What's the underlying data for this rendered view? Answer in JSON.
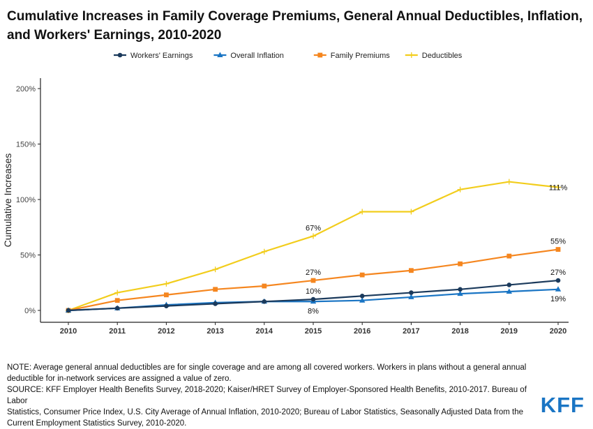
{
  "title_line1": "Cumulative Increases in Family Coverage Premiums, General Annual Deductibles, Inflation,",
  "title_line2": "and Workers' Earnings, 2010-2020",
  "note_line1": "NOTE: Average general annual deductibles are for single coverage and are among all covered workers. Workers in plans without a general annual",
  "note_line2": "deductible for in-network services are assigned a value of zero.",
  "note_line3": "SOURCE: KFF Employer Health Benefits Survey, 2018-2020; Kaiser/HRET Survey of Employer-Sponsored Health Benefits, 2010-2017. Bureau of Labor",
  "note_line4": "Statistics, Consumer Price Index, U.S. City Average of Annual Inflation, 2010-2020; Bureau of Labor Statistics, Seasonally Adjusted Data from the",
  "note_line5": "Current Employment Statistics Survey, 2010-2020.",
  "logo": "KFF",
  "chart_data": {
    "type": "line",
    "title": "Cumulative Increases in Family Coverage Premiums, General Annual Deductibles, Inflation, and Workers' Earnings, 2010-2020",
    "xlabel": "",
    "ylabel": "Cumulative Increases",
    "x": [
      2010,
      2011,
      2012,
      2013,
      2014,
      2015,
      2016,
      2017,
      2018,
      2019,
      2020
    ],
    "x_tick_labels": [
      "2010",
      "2011",
      "2012",
      "2013",
      "2014",
      "2015",
      "2016",
      "2017",
      "2018",
      "2019",
      "2020"
    ],
    "ylim": [
      0,
      200
    ],
    "y_ticks": [
      0,
      50,
      100,
      150,
      200
    ],
    "y_tick_labels": [
      "0%",
      "50%",
      "100%",
      "150%",
      "200%"
    ],
    "grid": false,
    "legend_position": "top",
    "series": [
      {
        "name": "Workers' Earnings",
        "color": "#1b3a5c",
        "marker": "circle",
        "values": [
          0,
          2,
          4,
          6,
          8,
          10,
          13,
          16,
          19,
          23,
          27
        ],
        "labels": [
          {
            "x": 2015,
            "text": "10%",
            "pos": "above"
          },
          {
            "x": 2020,
            "text": "27%",
            "pos": "above"
          }
        ]
      },
      {
        "name": "Overall Inflation",
        "color": "#1a75c4",
        "marker": "triangle",
        "values": [
          0,
          2,
          5,
          7,
          8,
          8,
          9,
          12,
          15,
          17,
          19
        ],
        "labels": [
          {
            "x": 2015,
            "text": "8%",
            "pos": "below"
          },
          {
            "x": 2020,
            "text": "19%",
            "pos": "below"
          }
        ]
      },
      {
        "name": "Family Premiums",
        "color": "#f5861f",
        "marker": "square",
        "values": [
          0,
          9,
          14,
          19,
          22,
          27,
          32,
          36,
          42,
          49,
          55
        ],
        "labels": [
          {
            "x": 2015,
            "text": "27%",
            "pos": "above"
          },
          {
            "x": 2020,
            "text": "55%",
            "pos": "above"
          }
        ]
      },
      {
        "name": "Deductibles",
        "color": "#f2cd1c",
        "marker": "plus",
        "values": [
          0,
          16,
          24,
          37,
          53,
          67,
          89,
          89,
          109,
          116,
          111
        ],
        "labels": [
          {
            "x": 2015,
            "text": "67%",
            "pos": "above"
          },
          {
            "x": 2020,
            "text": "111%",
            "pos": "center"
          }
        ]
      }
    ]
  }
}
